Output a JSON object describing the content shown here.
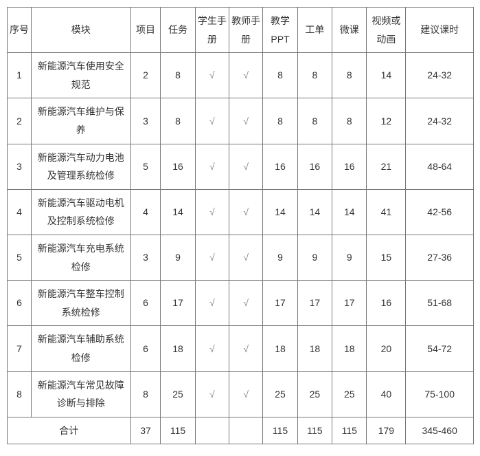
{
  "columns": [
    "序号",
    "模块",
    "项目",
    "任务",
    "学生手册",
    "教师手册",
    "教学PPT",
    "工单",
    "微课",
    "视频或动画",
    "建议课时"
  ],
  "rows": [
    {
      "seq": "1",
      "module": "新能源汽车使用安全规范",
      "proj": "2",
      "task": "8",
      "student": "√",
      "teacher": "√",
      "ppt": "8",
      "order": "8",
      "micro": "8",
      "video": "14",
      "hours": "24-32"
    },
    {
      "seq": "2",
      "module": "新能源汽车维护与保养",
      "proj": "3",
      "task": "8",
      "student": "√",
      "teacher": "√",
      "ppt": "8",
      "order": "8",
      "micro": "8",
      "video": "12",
      "hours": "24-32"
    },
    {
      "seq": "3",
      "module": "新能源汽车动力电池及管理系统检修",
      "proj": "5",
      "task": "16",
      "student": "√",
      "teacher": "√",
      "ppt": "16",
      "order": "16",
      "micro": "16",
      "video": "21",
      "hours": "48-64"
    },
    {
      "seq": "4",
      "module": "新能源汽车驱动电机及控制系统检修",
      "proj": "4",
      "task": "14",
      "student": "√",
      "teacher": "√",
      "ppt": "14",
      "order": "14",
      "micro": "14",
      "video": "41",
      "hours": "42-56"
    },
    {
      "seq": "5",
      "module": "新能源汽车充电系统检修",
      "proj": "3",
      "task": "9",
      "student": "√",
      "teacher": "√",
      "ppt": "9",
      "order": "9",
      "micro": "9",
      "video": "15",
      "hours": "27-36"
    },
    {
      "seq": "6",
      "module": "新能源汽车整车控制系统检修",
      "proj": "6",
      "task": "17",
      "student": "√",
      "teacher": "√",
      "ppt": "17",
      "order": "17",
      "micro": "17",
      "video": "16",
      "hours": "51-68"
    },
    {
      "seq": "7",
      "module": "新能源汽车辅助系统检修",
      "proj": "6",
      "task": "18",
      "student": "√",
      "teacher": "√",
      "ppt": "18",
      "order": "18",
      "micro": "18",
      "video": "20",
      "hours": "54-72"
    },
    {
      "seq": "8",
      "module": "新能源汽车常见故障诊断与排除",
      "proj": "8",
      "task": "25",
      "student": "√",
      "teacher": "√",
      "ppt": "25",
      "order": "25",
      "micro": "25",
      "video": "40",
      "hours": "75-100"
    }
  ],
  "total": {
    "label": "合计",
    "proj": "37",
    "task": "115",
    "student": "",
    "teacher": "",
    "ppt": "115",
    "order": "115",
    "micro": "115",
    "video": "179",
    "hours": "345-460"
  },
  "style": {
    "border_color": "#777777",
    "text_color": "#333333",
    "check_color": "#888888",
    "font_size": 14,
    "background": "#ffffff"
  }
}
